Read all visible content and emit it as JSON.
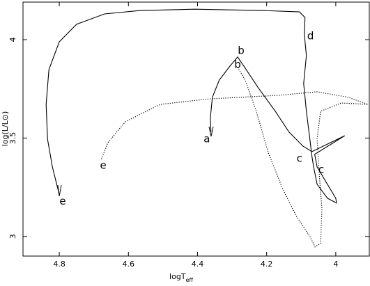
{
  "chart_data": {
    "type": "line",
    "x_label": "logT",
    "x_label_subscript": "eff",
    "y_label": "log(L/L⊙)",
    "xlim": [
      4.905,
      3.903
    ],
    "ylim": [
      2.9,
      4.191
    ],
    "xticks": [
      4.8,
      4.6,
      4.4,
      4.2,
      4
    ],
    "yticks": [
      3,
      3.5,
      4
    ],
    "series": [
      {
        "style": "solid",
        "color": "#000000",
        "x": [
          4.361,
          4.363,
          4.357,
          4.337,
          4.306,
          4.284,
          4.266,
          4.226,
          4.175,
          4.135,
          4.095,
          4.069,
          3.974,
          4.061,
          4.054,
          4.028,
          4.0,
          3.998,
          4.024,
          4.054,
          4.064,
          4.069,
          4.075,
          4.085,
          4.093,
          4.085,
          4.091,
          4.089,
          4.105,
          4.206,
          4.407,
          4.568,
          4.669,
          4.75,
          4.8,
          4.83,
          4.838,
          4.834,
          4.82,
          4.8
        ],
        "values": [
          3.53,
          3.601,
          3.707,
          3.795,
          3.866,
          3.912,
          3.866,
          3.76,
          3.636,
          3.53,
          3.459,
          3.431,
          3.512,
          3.417,
          3.353,
          3.276,
          3.194,
          3.17,
          3.194,
          3.265,
          3.353,
          3.406,
          3.495,
          3.636,
          3.777,
          3.919,
          4.025,
          4.113,
          4.141,
          4.148,
          4.155,
          4.148,
          4.131,
          4.078,
          3.989,
          3.848,
          3.671,
          3.495,
          3.353,
          3.212
        ]
      },
      {
        "style": "dotted",
        "color": "#000000",
        "x": [
          4.284,
          4.262,
          4.23,
          4.195,
          4.155,
          4.115,
          4.075,
          4.06,
          4.044,
          4.04,
          4.048,
          4.054,
          4.044,
          3.984,
          3.907,
          3.964,
          4.054,
          4.165,
          4.367,
          4.508,
          4.609,
          4.659,
          4.679
        ],
        "values": [
          3.859,
          3.795,
          3.636,
          3.424,
          3.247,
          3.106,
          3.0,
          2.947,
          2.965,
          3.141,
          3.318,
          3.495,
          3.636,
          3.678,
          3.671,
          3.707,
          3.735,
          3.717,
          3.699,
          3.671,
          3.583,
          3.477,
          3.389
        ]
      }
    ],
    "annotations": [
      {
        "text": "a",
        "x": 4.373,
        "y": 3.495
      },
      {
        "text": "b",
        "x": 4.274,
        "y": 3.943
      },
      {
        "text": "b",
        "x": 4.284,
        "y": 3.873
      },
      {
        "text": "c",
        "x": 4.105,
        "y": 3.396
      },
      {
        "text": "c",
        "x": 4.042,
        "y": 3.339
      },
      {
        "text": "d",
        "x": 4.073,
        "y": 4.018
      },
      {
        "text": "e",
        "x": 4.673,
        "y": 3.36
      },
      {
        "text": "e",
        "x": 4.79,
        "y": 3.177
      }
    ]
  }
}
